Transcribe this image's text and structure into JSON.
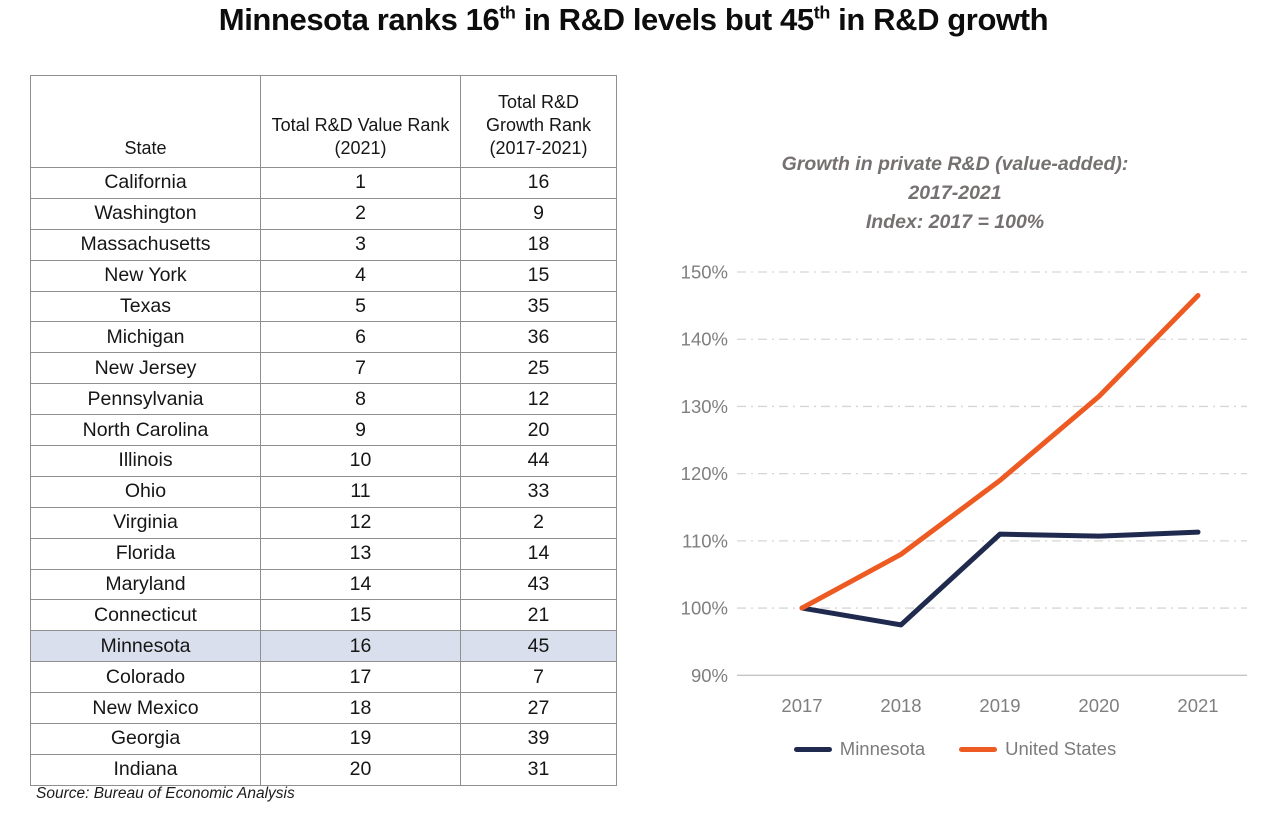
{
  "title": {
    "segments": [
      {
        "text": "Minnesota ranks 16",
        "sup": false
      },
      {
        "text": "th",
        "sup": true
      },
      {
        "text": " in R&D levels but 45",
        "sup": false
      },
      {
        "text": "th",
        "sup": true
      },
      {
        "text": " in R&D growth",
        "sup": false
      }
    ]
  },
  "table": {
    "headers": [
      "State",
      "Total R&D Value Rank (2021)",
      "Total R&D Growth Rank (2017-2021)"
    ],
    "rows": [
      [
        "California",
        "1",
        "16"
      ],
      [
        "Washington",
        "2",
        "9"
      ],
      [
        "Massachusetts",
        "3",
        "18"
      ],
      [
        "New York",
        "4",
        "15"
      ],
      [
        "Texas",
        "5",
        "35"
      ],
      [
        "Michigan",
        "6",
        "36"
      ],
      [
        "New Jersey",
        "7",
        "25"
      ],
      [
        "Pennsylvania",
        "8",
        "12"
      ],
      [
        "North Carolina",
        "9",
        "20"
      ],
      [
        "Illinois",
        "10",
        "44"
      ],
      [
        "Ohio",
        "11",
        "33"
      ],
      [
        "Virginia",
        "12",
        "2"
      ],
      [
        "Florida",
        "13",
        "14"
      ],
      [
        "Maryland",
        "14",
        "43"
      ],
      [
        "Connecticut",
        "15",
        "21"
      ],
      [
        "Minnesota",
        "16",
        "45"
      ],
      [
        "Colorado",
        "17",
        "7"
      ],
      [
        "New Mexico",
        "18",
        "27"
      ],
      [
        "Georgia",
        "19",
        "39"
      ],
      [
        "Indiana",
        "20",
        "31"
      ]
    ],
    "highlighted_state": "Minnesota",
    "highlight_color": "#d9dfec"
  },
  "source": "Source: Bureau of Economic Analysis",
  "chart_data": {
    "type": "line",
    "title_lines": [
      "Growth in private R&D (value-added):",
      "2017-2021",
      "Index: 2017 = 100%"
    ],
    "x": [
      "2017",
      "2018",
      "2019",
      "2020",
      "2021"
    ],
    "series": [
      {
        "name": "Minnesota",
        "color": "#1f2a4e",
        "values": [
          100,
          97.5,
          111,
          110.7,
          111.3
        ]
      },
      {
        "name": "United States",
        "color": "#ed5b23",
        "values": [
          100,
          108,
          119,
          131.5,
          146.5
        ]
      }
    ],
    "ylim": [
      90,
      150
    ],
    "ytick_step": 10,
    "ytick_format": "percent",
    "grid": "horizontal dash-dot, bottom axis solid at 90%",
    "legend_position": "bottom"
  }
}
